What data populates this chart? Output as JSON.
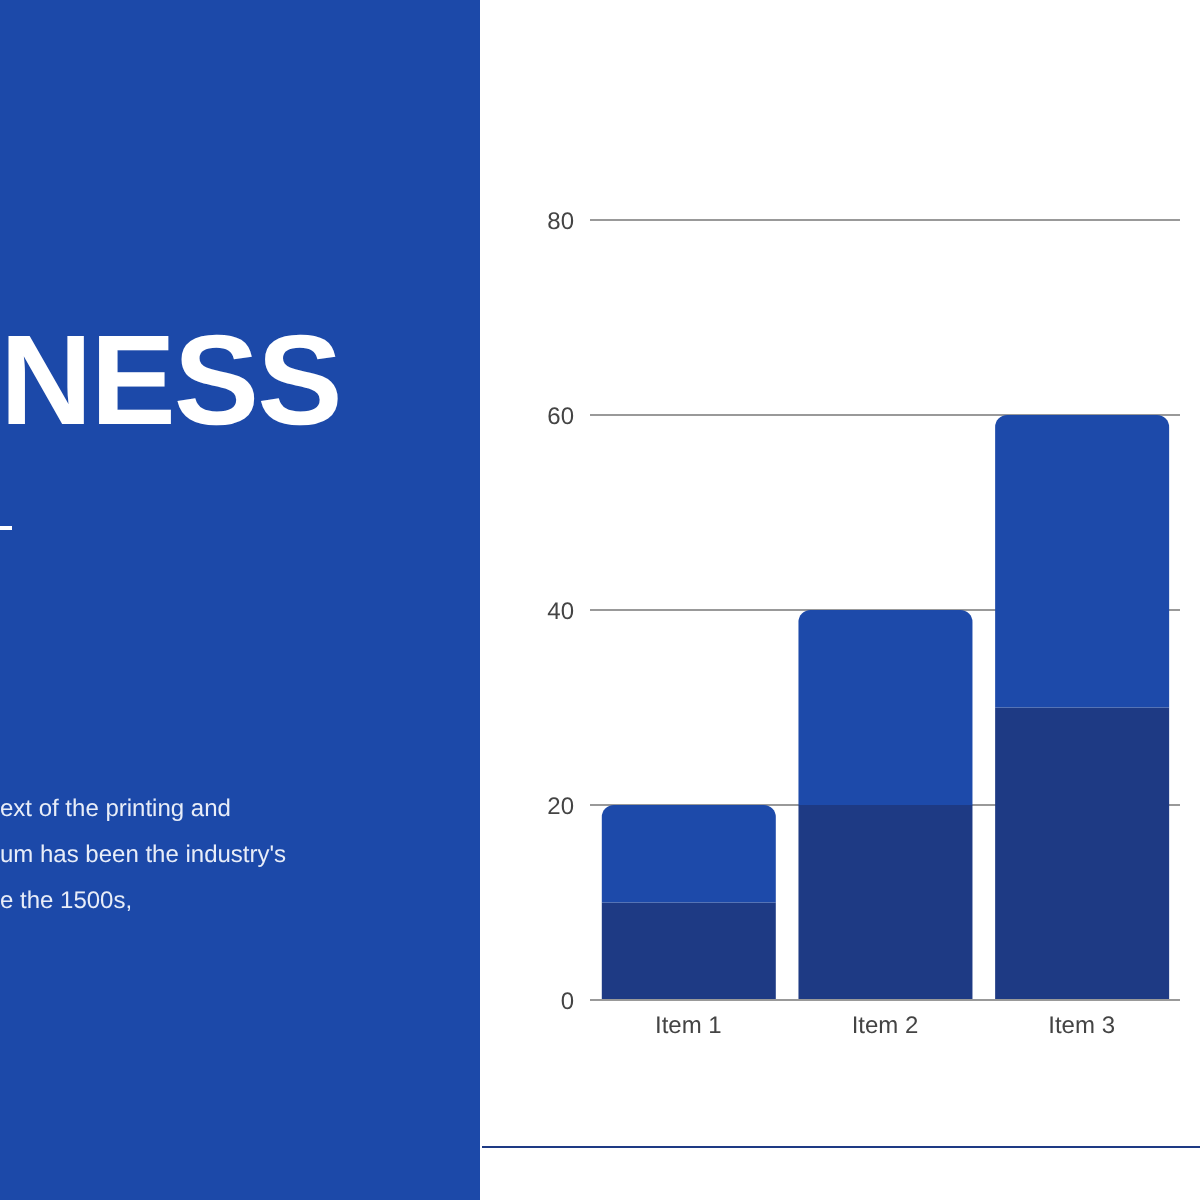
{
  "chart_data": {
    "type": "bar",
    "title": "NESS",
    "annotations": [
      "ext of the printing and",
      "um has been the industry's",
      "e the 1500s,"
    ],
    "categories": [
      "Item 1",
      "Item 2",
      "Item 3"
    ],
    "stacked": true,
    "series": [
      {
        "color": "#1e3a84",
        "values": [
          10,
          20,
          30
        ]
      },
      {
        "color": "#1d4aaa",
        "values": [
          10,
          20,
          30
        ]
      }
    ],
    "ylim": [
      0,
      80
    ],
    "yticks": [
      0,
      20,
      40,
      60,
      80
    ],
    "grid": "y"
  }
}
